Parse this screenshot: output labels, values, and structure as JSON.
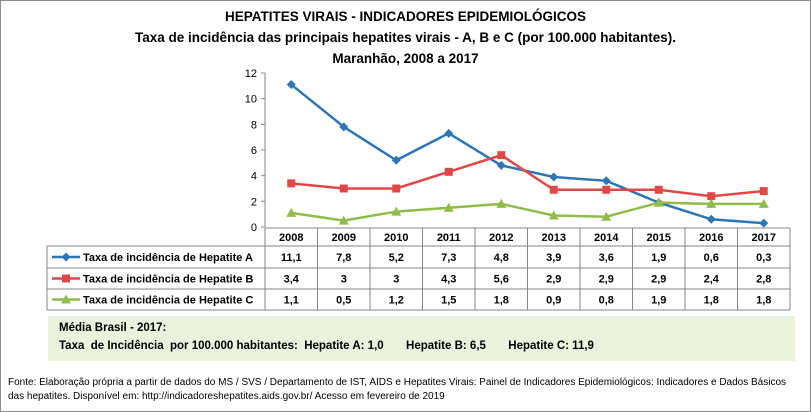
{
  "chart_data": {
    "type": "line",
    "title": "HEPATITES VIRAIS - INDICADORES EPIDEMIOLÓGICOS",
    "subtitle": "Taxa de incidência das principais hepatites virais - A, B e C (por 100.000 habitantes).",
    "subtitle2": "Maranhão, 2008 a 2017",
    "categories": [
      "2008",
      "2009",
      "2010",
      "2011",
      "2012",
      "2013",
      "2014",
      "2015",
      "2016",
      "2017"
    ],
    "ylim": [
      0,
      12
    ],
    "yticks": [
      0,
      2,
      4,
      6,
      8,
      10,
      12
    ],
    "grid": false,
    "legend": "data-table",
    "series": [
      {
        "name": "Taxa de incidência de Hepatite A",
        "color": "#2e75b6",
        "marker": "diamond",
        "values": [
          11.1,
          7.8,
          5.2,
          7.3,
          4.8,
          3.9,
          3.6,
          1.9,
          0.6,
          0.3
        ],
        "labels": [
          "11,1",
          "7,8",
          "5,2",
          "7,3",
          "4,8",
          "3,9",
          "3,6",
          "1,9",
          "0,6",
          "0,3"
        ]
      },
      {
        "name": "Taxa de incidência de Hepatite B",
        "color": "#e04848",
        "marker": "square",
        "values": [
          3.4,
          3,
          3,
          4.3,
          5.6,
          2.9,
          2.9,
          2.9,
          2.4,
          2.8
        ],
        "labels": [
          "3,4",
          "3",
          "3",
          "4,3",
          "5,6",
          "2,9",
          "2,9",
          "2,9",
          "2,4",
          "2,8"
        ]
      },
      {
        "name": "Taxa de incidência de Hepatite C",
        "color": "#8fbc4a",
        "marker": "triangle",
        "values": [
          1.1,
          0.5,
          1.2,
          1.5,
          1.8,
          0.9,
          0.8,
          1.9,
          1.8,
          1.8
        ],
        "labels": [
          "1,1",
          "0,5",
          "1,2",
          "1,5",
          "1,8",
          "0,9",
          "0,8",
          "1,9",
          "1,8",
          "1,8"
        ]
      }
    ]
  },
  "note": {
    "heading": "Média Brasil - 2017:",
    "line": "Taxa  de Incidência  por 100.000 habitantes:  Hepatite A: 1,0       Hepatite B: 6,5       Hepatite C: 11,9"
  },
  "source": "Fonte: Elaboração própria a partir de dados do MS / SVS / Departamento de IST, AIDS e Hepatites Virais:  Painel de Indicadores Epidemiológicos: Indicadores e Dados Básicos das hepatites.  Disponível em: http://indicadoreshepatites.aids.gov.br/      Acesso em fevereiro de 2019"
}
